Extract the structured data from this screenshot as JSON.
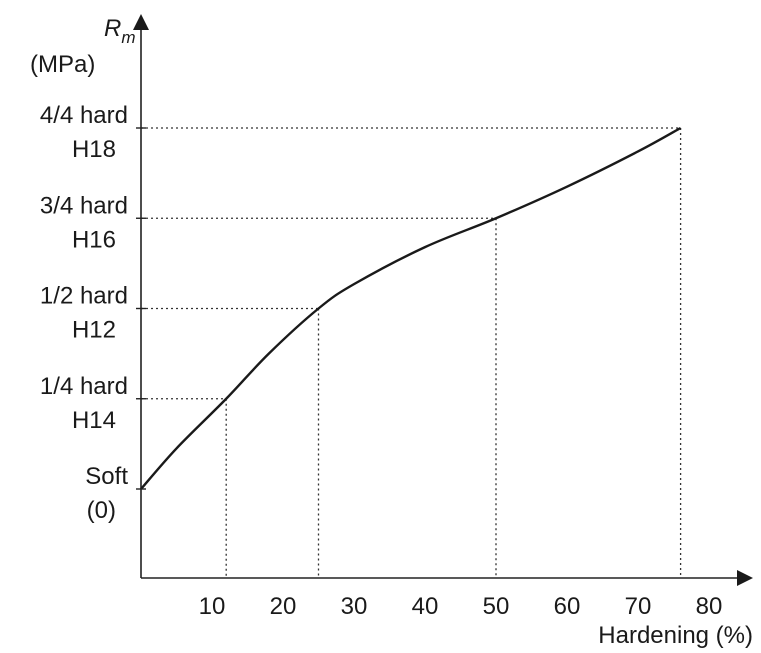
{
  "chart_data": {
    "type": "line",
    "y_title": {
      "symbol": "R",
      "subscript": "m",
      "unit": "(MPa)"
    },
    "xlabel": "Hardening (%)",
    "x_ticks": [
      10,
      20,
      30,
      40,
      50,
      60,
      70,
      80
    ],
    "xlim": [
      0,
      80
    ],
    "y_levels": [
      {
        "line1": "Soft",
        "line2": "(0)"
      },
      {
        "line1": "1/4 hard",
        "line2": "H14"
      },
      {
        "line1": "1/2 hard",
        "line2": "H12"
      },
      {
        "line1": "3/4 hard",
        "line2": "H16"
      },
      {
        "line1": "4/4 hard",
        "line2": "H18"
      }
    ],
    "ylim": [
      -1,
      4.5
    ],
    "series": [
      {
        "x": [
          0,
          5,
          12,
          18,
          25,
          30,
          40,
          50,
          60,
          70,
          76
        ],
        "y": [
          0,
          0.45,
          1,
          1.5,
          2,
          2.27,
          2.68,
          3,
          3.35,
          3.74,
          4
        ]
      }
    ],
    "guides": [
      {
        "x": 12,
        "y": 1
      },
      {
        "x": 25,
        "y": 2
      },
      {
        "x": 50,
        "y": 3
      },
      {
        "x": 76,
        "y": 4
      }
    ],
    "grid": false
  }
}
